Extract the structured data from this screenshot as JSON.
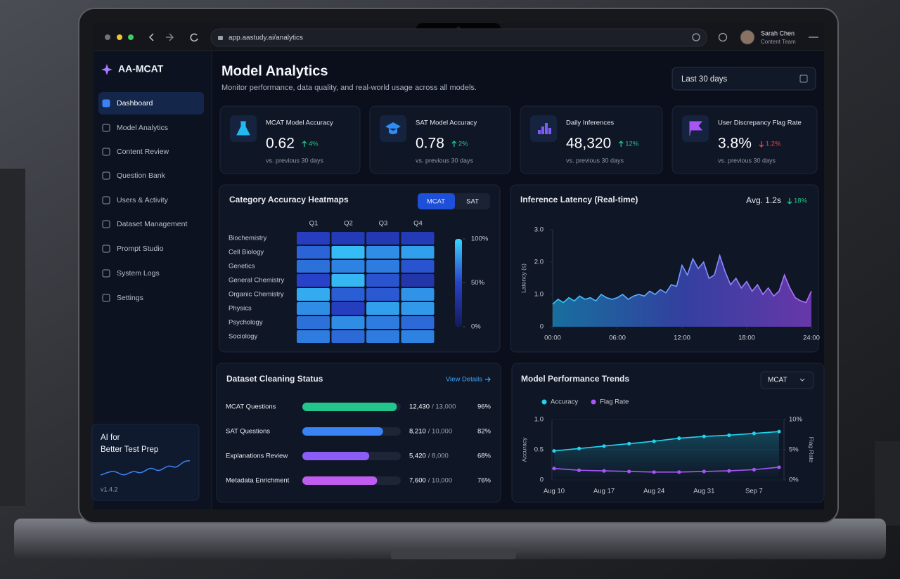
{
  "browser": {
    "url": "app.aastudy.ai/analytics",
    "user_name": "Sarah Chen",
    "user_role": "Content Team"
  },
  "sidebar": {
    "brand": "AA-MCAT",
    "nav": [
      "Dashboard",
      "Model Analytics",
      "Content Review",
      "Question Bank",
      "Users & Activity",
      "Dataset Management",
      "Prompt Studio",
      "System Logs",
      "Settings"
    ],
    "active": 0,
    "promo": [
      "AI for",
      "Better Test Prep"
    ],
    "version": "v1.4.2"
  },
  "header": {
    "title": "Model Analytics",
    "subtitle": "Monitor performance, data quality, and real-world usage across all models.",
    "date_range": "Last 30 days"
  },
  "kpis": [
    {
      "label": "MCAT Model Accuracy",
      "value": "0.62",
      "change": "4%",
      "trend": "up",
      "note": "vs. previous 30 days",
      "color": "#22b8f0"
    },
    {
      "label": "SAT Model Accuracy",
      "value": "0.78",
      "change": "2%",
      "trend": "up",
      "note": "vs. previous 30 days",
      "color": "#2f8cf5"
    },
    {
      "label": "Daily Inferences",
      "value": "48,320",
      "change": "12%",
      "trend": "up",
      "note": "vs. previous 30 days",
      "color": "#7c5cf5"
    },
    {
      "label": "User Discrepancy Flag Rate",
      "value": "3.8%",
      "change": "1.2%",
      "trend": "down",
      "note": "vs. previous 30 days",
      "color": "#a855f7"
    }
  ],
  "dataset": {
    "title": "Dataset Cleaning Status",
    "link": "View Details",
    "rows": [
      {
        "name": "MCAT Questions",
        "done": "12,430",
        "total": "/ 13,000"
      },
      {
        "name": "SAT Questions",
        "done": "8,210",
        "total": "/ 10,000"
      },
      {
        "name": "Explanations Review",
        "done": "5,420",
        "total": "/ 8,000"
      },
      {
        "name": "Metadata Enrichment",
        "done": "7,600",
        "total": "/ 10,000"
      }
    ],
    "values": [
      96,
      82,
      68,
      76
    ],
    "value_labels": [
      "96%",
      "82%",
      "68%",
      "76%"
    ],
    "colors": [
      "#22c58b",
      "#3b82f6",
      "#8b5cf6",
      "#c05cf0"
    ]
  },
  "chart_data": [
    {
      "type": "heatmap",
      "title": "Category Accuracy Heatmaps",
      "tabs": [
        "MCAT",
        "SAT"
      ],
      "active_tab": 0,
      "columns": [
        "Q1",
        "Q2",
        "Q3",
        "Q4"
      ],
      "rows": [
        "Biochemistry",
        "Cell Biology",
        "Genetics",
        "General Chemistry",
        "Organic Chemistry",
        "Physics",
        "Psychology",
        "Sociology"
      ],
      "values": [
        [
          45,
          42,
          40,
          42
        ],
        [
          62,
          92,
          76,
          82
        ],
        [
          66,
          72,
          70,
          56
        ],
        [
          50,
          90,
          56,
          36
        ],
        [
          86,
          60,
          58,
          78
        ],
        [
          76,
          46,
          82,
          80
        ],
        [
          66,
          76,
          70,
          64
        ],
        [
          70,
          64,
          70,
          72
        ]
      ],
      "scale": [
        0,
        100
      ],
      "ticks": [
        {
          "value": 100,
          "label": "100%"
        },
        {
          "value": 50,
          "label": "50%"
        },
        {
          "value": 0,
          "label": "0%"
        }
      ]
    },
    {
      "type": "area",
      "title": "Inference Latency (Real-time)",
      "summary": "Avg. 1.2s",
      "change": "18%",
      "trend": "down",
      "ylabel": "Latency (s)",
      "x": [
        0,
        0.5,
        1,
        1.5,
        2,
        2.5,
        3,
        3.5,
        4,
        4.5,
        5,
        5.5,
        6,
        6.5,
        7,
        7.5,
        8,
        8.5,
        9,
        9.5,
        10,
        10.5,
        11,
        11.5,
        12,
        12.5,
        13,
        13.5,
        14,
        14.5,
        15,
        15.5,
        16,
        16.5,
        17,
        17.5,
        18,
        18.5,
        19,
        19.5,
        20,
        20.5,
        21,
        21.5,
        22,
        22.5,
        23,
        23.5,
        24
      ],
      "values": [
        0.7,
        0.85,
        0.75,
        0.9,
        0.8,
        0.95,
        0.85,
        0.9,
        0.8,
        1.0,
        0.9,
        0.85,
        0.9,
        1.0,
        0.85,
        0.95,
        1.0,
        0.95,
        1.1,
        1.0,
        1.15,
        1.05,
        1.3,
        1.25,
        1.9,
        1.6,
        2.1,
        1.8,
        2.0,
        1.5,
        1.6,
        2.2,
        1.7,
        1.3,
        1.5,
        1.2,
        1.4,
        1.1,
        1.3,
        1.0,
        1.2,
        0.95,
        1.1,
        1.6,
        1.2,
        0.9,
        0.8,
        0.75,
        1.1
      ],
      "xlim": [
        0,
        24
      ],
      "xticks": [
        {
          "value": 0,
          "label": "00:00"
        },
        {
          "value": 6,
          "label": "06:00"
        },
        {
          "value": 12,
          "label": "12:00"
        },
        {
          "value": 18,
          "label": "18:00"
        },
        {
          "value": 24,
          "label": "24:00"
        }
      ],
      "ylim": [
        0,
        3
      ],
      "yticks": [
        0,
        {
          "value": 1,
          "label": "1.0"
        },
        {
          "value": 2,
          "label": "2.0"
        },
        {
          "value": 3,
          "label": "3.0"
        }
      ]
    },
    {
      "type": "line",
      "title": "Model Performance Trends",
      "dropdown": "MCAT",
      "categories": [
        "Aug 10",
        null,
        "Aug 17",
        null,
        "Aug 24",
        null,
        "Aug 31",
        null,
        "Sep 7",
        null
      ],
      "series": [
        {
          "name": "Accuracy",
          "color": "#22d3ee",
          "values": [
            0.48,
            0.52,
            0.56,
            0.6,
            0.64,
            0.69,
            0.72,
            0.74,
            0.77,
            0.8
          ]
        },
        {
          "name": "Flag Rate",
          "color": "#a855f7",
          "axis": "y2",
          "values": [
            1.9,
            1.6,
            1.5,
            1.4,
            1.3,
            1.3,
            1.4,
            1.5,
            1.7,
            2.1
          ]
        }
      ],
      "ylabel": "Accuracy",
      "y2label": "Flag Rate",
      "ylim": [
        0,
        1
      ],
      "yticks": [
        0,
        0.5,
        {
          "value": 1,
          "label": "1.0"
        }
      ],
      "y2lim": [
        0,
        10
      ],
      "y2ticks": [
        {
          "value": 0,
          "label": "0%"
        },
        {
          "value": 5,
          "label": "5%"
        },
        {
          "value": 10,
          "label": "10%"
        }
      ]
    }
  ]
}
